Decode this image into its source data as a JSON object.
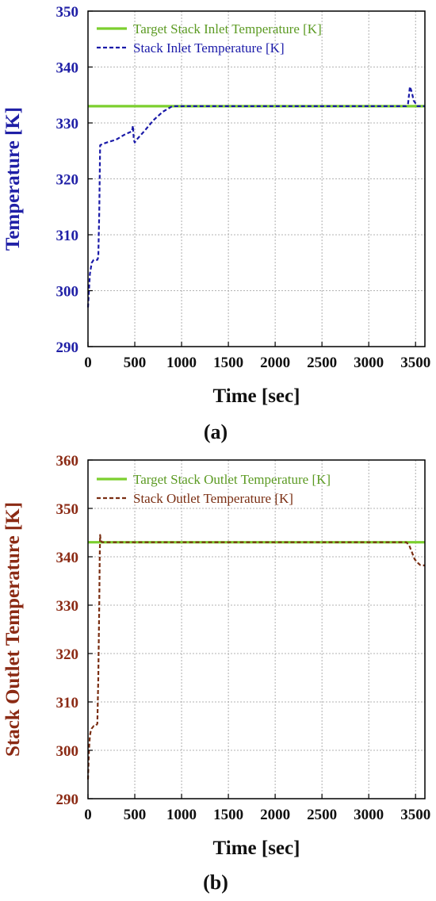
{
  "chart_data": [
    {
      "type": "line",
      "panel_label": "(a)",
      "xlabel": "Time [sec]",
      "ylabel": "Temperature [K]",
      "xlim": [
        0,
        3600
      ],
      "ylim": [
        290,
        350
      ],
      "xticks": [
        0,
        500,
        1000,
        1500,
        2000,
        2500,
        3000,
        3500
      ],
      "yticks": [
        290,
        300,
        310,
        320,
        330,
        340,
        350
      ],
      "grid": true,
      "legend_position": "top-left",
      "colors": {
        "ytick": "#1f1fa6",
        "ylabel": "#1f1fa6"
      },
      "series": [
        {
          "name": "Target Stack Inlet Temperature [K]",
          "color": "#7ccf2f",
          "style": "solid",
          "x": [
            0,
            3600
          ],
          "y": [
            333,
            333
          ]
        },
        {
          "name": "Stack Inlet Temperature [K]",
          "color": "#1a1aa8",
          "style": "dashed",
          "x": [
            0,
            20,
            40,
            60,
            80,
            100,
            110,
            120,
            130,
            150,
            200,
            300,
            400,
            470,
            480,
            490,
            500,
            520,
            600,
            700,
            800,
            900,
            950,
            1500,
            2000,
            2500,
            3000,
            3350,
            3400,
            3420,
            3440,
            3460,
            3480,
            3500,
            3520,
            3550,
            3600
          ],
          "y": [
            297,
            303,
            305,
            305.5,
            305.5,
            305.5,
            306,
            314,
            326,
            326.2,
            326.5,
            327,
            328,
            328.5,
            329.5,
            327,
            326.5,
            327,
            328.5,
            330.5,
            332,
            333,
            333,
            333,
            333,
            333,
            333,
            333,
            333,
            333.5,
            336.5,
            335.5,
            334,
            333.5,
            333,
            333,
            333
          ]
        }
      ]
    },
    {
      "type": "line",
      "panel_label": "(b)",
      "xlabel": "Time [sec]",
      "ylabel": "Stack Outlet Temperature [K]",
      "xlim": [
        0,
        3600
      ],
      "ylim": [
        290,
        360
      ],
      "xticks": [
        0,
        500,
        1000,
        1500,
        2000,
        2500,
        3000,
        3500
      ],
      "yticks": [
        290,
        300,
        310,
        320,
        330,
        340,
        350,
        360
      ],
      "grid": true,
      "legend_position": "top-left",
      "colors": {
        "ytick": "#8b2a14",
        "ylabel": "#8b2a14"
      },
      "series": [
        {
          "name": "Target Stack Outlet Temperature [K]",
          "color": "#7ccf2f",
          "style": "solid",
          "x": [
            0,
            3600
          ],
          "y": [
            343,
            343
          ]
        },
        {
          "name": "Stack Outlet Temperature [K]",
          "color": "#7a2e12",
          "style": "dashed",
          "x": [
            0,
            10,
            20,
            30,
            40,
            60,
            80,
            100,
            110,
            120,
            125,
            130,
            135,
            150,
            200,
            500,
            1000,
            2000,
            3000,
            3300,
            3400,
            3430,
            3460,
            3490,
            3520,
            3550,
            3600
          ],
          "y": [
            294,
            300,
            303,
            304,
            304.5,
            305,
            305,
            305.5,
            315,
            330,
            340,
            344.5,
            343.5,
            343,
            343,
            343,
            343,
            343,
            343,
            343,
            343,
            342.5,
            341,
            339.5,
            338.8,
            338.3,
            338.2
          ]
        }
      ]
    }
  ]
}
